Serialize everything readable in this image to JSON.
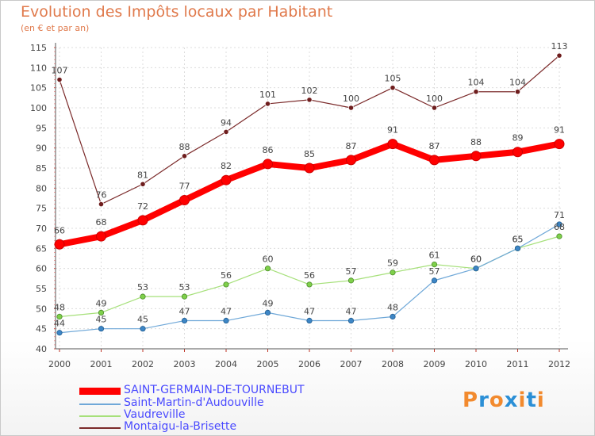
{
  "chart_data": {
    "type": "line",
    "title": "Evolution des Impôts locaux par Habitant",
    "subtitle": "(en € et par an)",
    "xlabel": "",
    "ylabel": "",
    "ylim": [
      40,
      115
    ],
    "yticks": [
      40,
      45,
      50,
      55,
      60,
      65,
      70,
      75,
      80,
      85,
      90,
      95,
      100,
      105,
      110,
      115
    ],
    "categories": [
      "2000",
      "2001",
      "2002",
      "2003",
      "2004",
      "2005",
      "2006",
      "2007",
      "2008",
      "2009",
      "2010",
      "2011",
      "2012"
    ],
    "grid": true,
    "legend_position": "bottom-left",
    "series": [
      {
        "name": "Montaigu-la-Brisette",
        "color": "#7b2a2a",
        "values": [
          107,
          76,
          81,
          88,
          94,
          101,
          102,
          100,
          105,
          100,
          104,
          104,
          113
        ]
      },
      {
        "name": "Vaudreville",
        "color": "#a6e07a",
        "values": [
          48,
          49,
          53,
          53,
          56,
          60,
          56,
          57,
          59,
          61,
          60,
          65,
          68
        ]
      },
      {
        "name": "Saint-Martin-d'Audouville",
        "color": "#6fa8d8",
        "values": [
          44,
          45,
          45,
          47,
          47,
          49,
          47,
          47,
          48,
          57,
          60,
          65,
          71
        ]
      },
      {
        "name": "SAINT-GERMAIN-DE-TOURNEBUT",
        "color": "#ff0000",
        "values": [
          66,
          68,
          72,
          77,
          82,
          86,
          85,
          87,
          91,
          87,
          88,
          89,
          91
        ]
      }
    ]
  },
  "legend": {
    "items": [
      {
        "label": "SAINT-GERMAIN-DE-TOURNEBUT",
        "color": "#ff0000",
        "text_color": "#4a4aff"
      },
      {
        "label": "Saint-Martin-d'Audouville",
        "color": "#6fa8d8",
        "text_color": "#4a4aff"
      },
      {
        "label": "Vaudreville",
        "color": "#a6e07a",
        "text_color": "#4a4aff"
      },
      {
        "label": "Montaigu-la-Brisette",
        "color": "#7b2a2a",
        "text_color": "#4a4aff"
      }
    ]
  },
  "logo": {
    "text": "Proxiti",
    "letter_colors": [
      "#f28a2e",
      "#2b8fd6",
      "#f28a2e",
      "#2b8fd6",
      "#f28a2e",
      "#2b8fd6",
      "#f28a2e"
    ]
  }
}
